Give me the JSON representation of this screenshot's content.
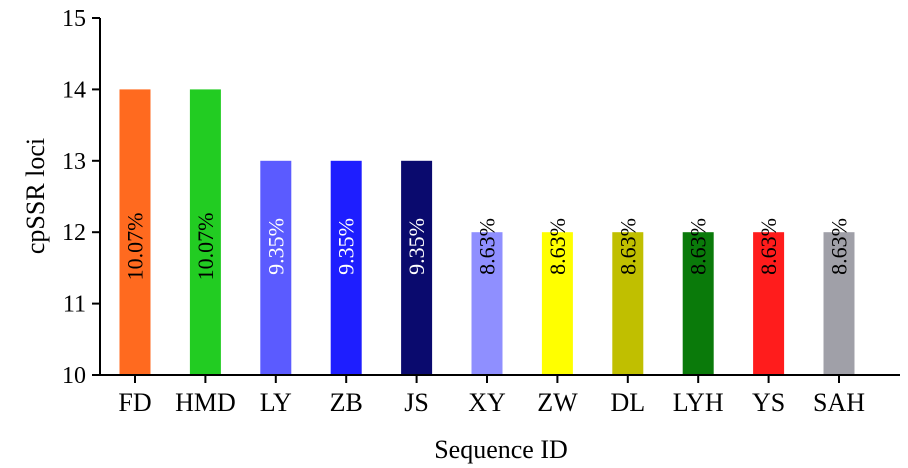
{
  "chart_data": {
    "type": "bar",
    "title": "",
    "xlabel": "Sequence ID",
    "ylabel": "cpSSR loci",
    "ylim": [
      10,
      15
    ],
    "yticks": [
      10,
      11,
      12,
      13,
      14,
      15
    ],
    "grid": false,
    "legend": "none",
    "categories": [
      "FD",
      "HMD",
      "LY",
      "ZB",
      "JS",
      "XY",
      "ZW",
      "DL",
      "LYH",
      "YS",
      "SAH"
    ],
    "values": [
      14,
      14,
      13,
      13,
      13,
      12,
      12,
      12,
      12,
      12,
      12
    ],
    "bar_labels": [
      "10.07%",
      "10.07%",
      "9.35%",
      "9.35%",
      "9.35%",
      "8.63%",
      "8.63%",
      "8.63%",
      "8.63%",
      "8.63%",
      "8.63%"
    ],
    "bar_colors": [
      "#ff6a1f",
      "#22cc22",
      "#5b5bff",
      "#1e1eff",
      "#0a0a6e",
      "#8f8fff",
      "#ffff00",
      "#c0bf00",
      "#0a7a0a",
      "#ff1c1c",
      "#a0a0a8"
    ],
    "label_colors": [
      "#000000",
      "#000000",
      "#ffffff",
      "#ffffff",
      "#ffffff",
      "#000000",
      "#000000",
      "#000000",
      "#000000",
      "#000000",
      "#000000"
    ]
  }
}
